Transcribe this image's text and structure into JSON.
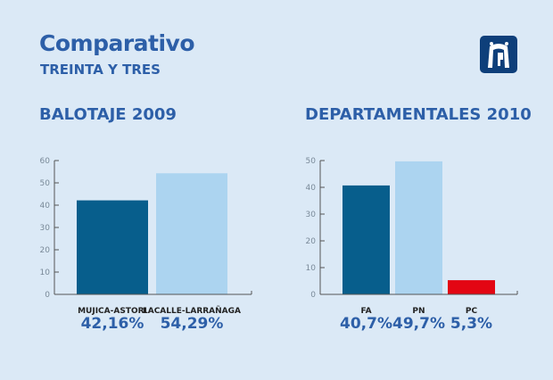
{
  "header": {
    "title": "Comparativo",
    "subtitle": "TREINTA Y TRES"
  },
  "logo_icon": "institution-logo-icon",
  "chart_data": [
    {
      "type": "bar",
      "title": "BALOTAJE 2009",
      "categories": [
        "MUJICA-ASTORI",
        "LACALLE-LARRAÑAGA"
      ],
      "values": [
        42.16,
        54.29
      ],
      "value_labels": [
        "42,16%",
        "54,29%"
      ],
      "colors": [
        "#075e8c",
        "#acd4f0"
      ],
      "ylim": [
        0,
        60
      ],
      "yticks": [
        0,
        10,
        20,
        30,
        40,
        50,
        60
      ],
      "xlabel": "",
      "ylabel": ""
    },
    {
      "type": "bar",
      "title": "DEPARTAMENTALES 2010",
      "categories": [
        "FA",
        "PN",
        "PC"
      ],
      "values": [
        40.7,
        49.7,
        5.3
      ],
      "value_labels": [
        "40,7%",
        "49,7%",
        "5,3%"
      ],
      "colors": [
        "#075e8c",
        "#acd4f0",
        "#e30613"
      ],
      "ylim": [
        0,
        50
      ],
      "yticks": [
        0,
        10,
        20,
        30,
        40,
        50
      ],
      "xlabel": "",
      "ylabel": ""
    }
  ]
}
